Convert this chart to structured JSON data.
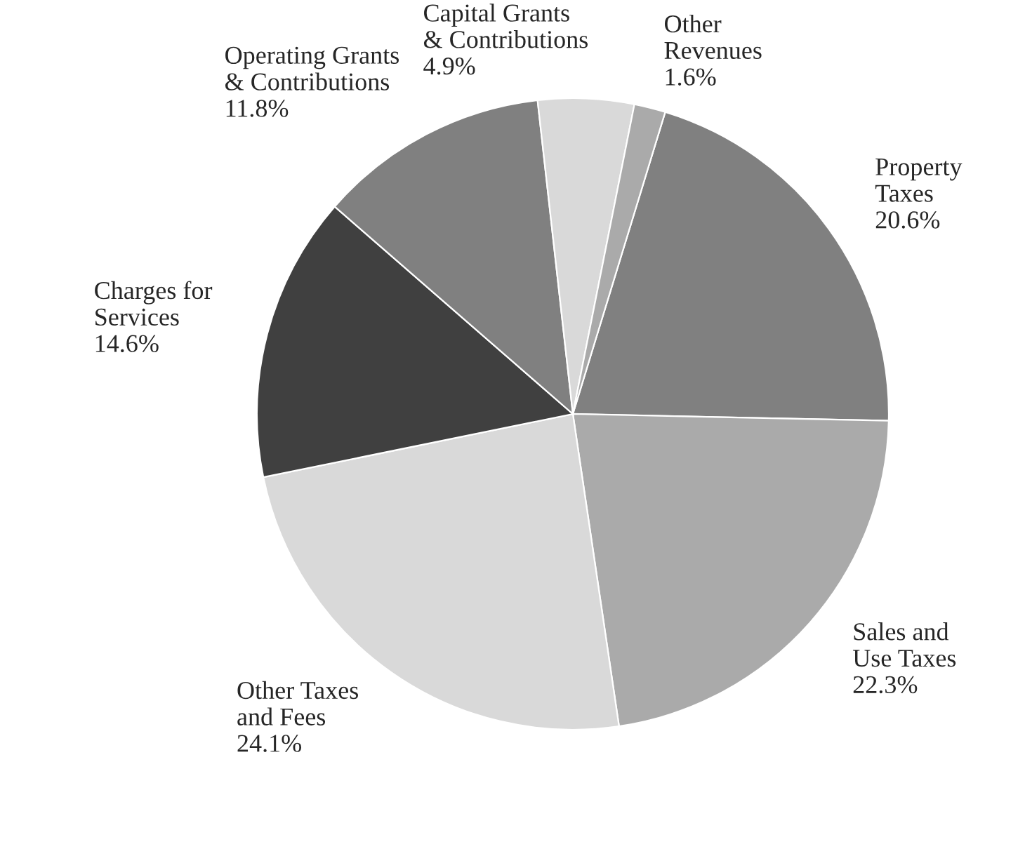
{
  "chart_data": {
    "type": "pie",
    "categories": [
      "Property\nTaxes",
      "Sales and\nUse Taxes",
      "Other Taxes\nand Fees",
      "Charges for\nServices",
      "Operating Grants\n& Contributions",
      "Capital Grants\n& Contributions",
      "Other\nRevenues"
    ],
    "values": [
      20.6,
      22.3,
      24.1,
      14.6,
      11.8,
      4.9,
      1.6
    ],
    "value_labels": [
      "20.6%",
      "22.3%",
      "24.1%",
      "14.6%",
      "11.8%",
      "4.9%",
      "1.6%"
    ],
    "colors": [
      "#808080",
      "#aaaaaa",
      "#d9d9d9",
      "#404040",
      "#808080",
      "#d9d9d9",
      "#aaaaaa"
    ]
  }
}
